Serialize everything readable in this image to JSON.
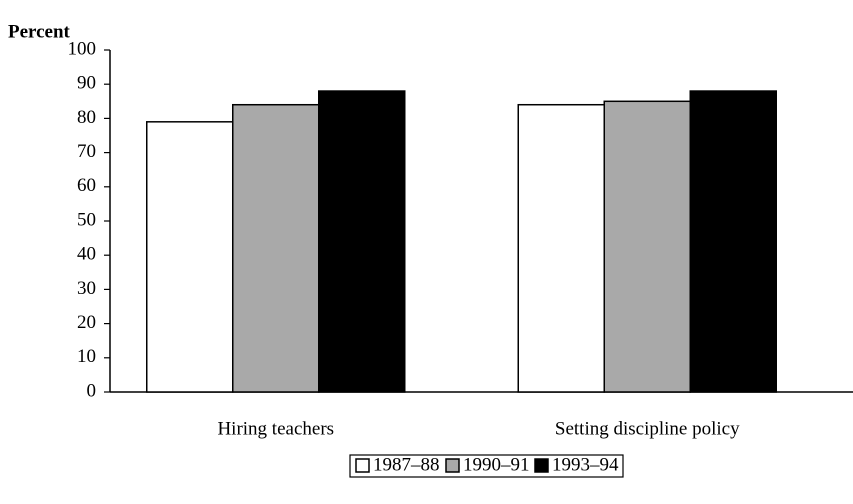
{
  "chart_data": {
    "type": "bar",
    "y_label": "Percent",
    "categories": [
      "Hiring teachers",
      "Setting discipline policy"
    ],
    "series": [
      {
        "name": "1987–88",
        "color": "#ffffff",
        "values": [
          79,
          84
        ]
      },
      {
        "name": "1990–91",
        "color": "#a9a9a9",
        "values": [
          84,
          85
        ]
      },
      {
        "name": "1993–94",
        "color": "#000000",
        "values": [
          88,
          88
        ]
      }
    ],
    "ylim": [
      0,
      100
    ],
    "yticks": [
      0,
      10,
      20,
      30,
      40,
      50,
      60,
      70,
      80,
      90,
      100
    ],
    "legend": "bottom"
  }
}
